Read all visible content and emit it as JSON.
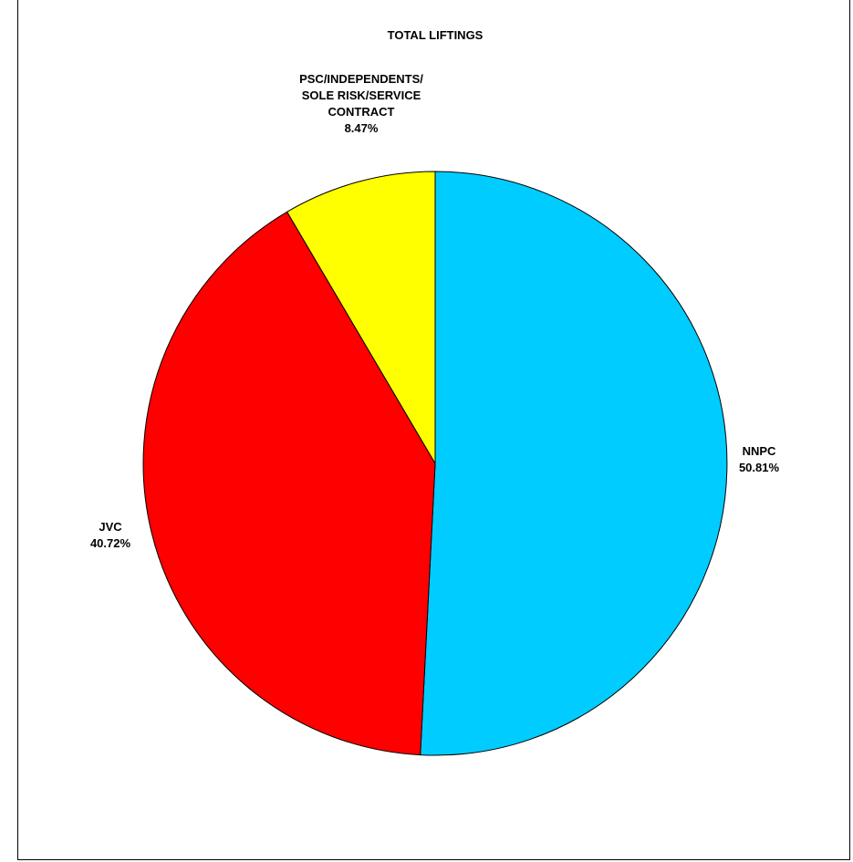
{
  "chart_data": {
    "type": "pie",
    "title": "TOTAL LIFTINGS",
    "start_angle_deg": 0,
    "direction": "clockwise",
    "slices": [
      {
        "name": "NNPC",
        "label_lines": [
          "NNPC",
          "50.81%"
        ],
        "value": 50.81,
        "percent_label": "50.81%",
        "color": "#00CCFF"
      },
      {
        "name": "JVC",
        "label_lines": [
          "JVC",
          "40.72%"
        ],
        "value": 40.72,
        "percent_label": "40.72%",
        "color": "#FF0000"
      },
      {
        "name": "PSC/INDEPENDENTS/ SOLE RISK/SERVICE CONTRACT",
        "label_lines": [
          "PSC/INDEPENDENTS/",
          "SOLE RISK/SERVICE",
          "CONTRACT",
          "8.47%"
        ],
        "value": 8.47,
        "percent_label": "8.47%",
        "color": "#FFFF00"
      }
    ],
    "legend": "none"
  }
}
